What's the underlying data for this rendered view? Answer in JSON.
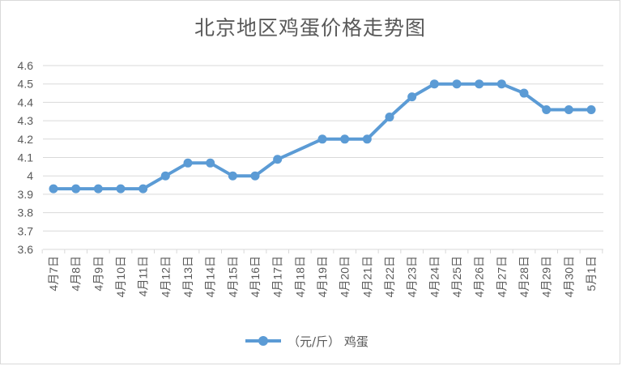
{
  "chart_data": {
    "type": "line",
    "title": "北京地区鸡蛋价格走势图",
    "xlabel": "",
    "ylabel": "",
    "ylim": [
      3.6,
      4.6
    ],
    "yticks": [
      "3.6",
      "3.7",
      "3.8",
      "3.9",
      "4",
      "4.1",
      "4.2",
      "4.3",
      "4.4",
      "4.5",
      "4.6"
    ],
    "grid": true,
    "legend_position": "bottom",
    "categories": [
      "4月7日",
      "4月8日",
      "4月9日",
      "4月10日",
      "4月11日",
      "4月12日",
      "4月13日",
      "4月14日",
      "4月15日",
      "4月16日",
      "4月17日",
      "4月18日",
      "4月19日",
      "4月20日",
      "4月21日",
      "4月22日",
      "4月23日",
      "4月24日",
      "4月25日",
      "4月26日",
      "4月27日",
      "4月28日",
      "4月29日",
      "4月30日",
      "5月1日"
    ],
    "series": [
      {
        "name": "（元/斤） 鸡蛋",
        "color": "#5b9bd5",
        "values": [
          3.93,
          3.93,
          3.93,
          3.93,
          3.93,
          4.0,
          4.07,
          4.07,
          4.0,
          4.0,
          4.09,
          null,
          4.2,
          4.2,
          4.2,
          4.32,
          4.43,
          4.5,
          4.5,
          4.5,
          4.5,
          4.45,
          4.36,
          4.36,
          4.36
        ]
      }
    ]
  }
}
